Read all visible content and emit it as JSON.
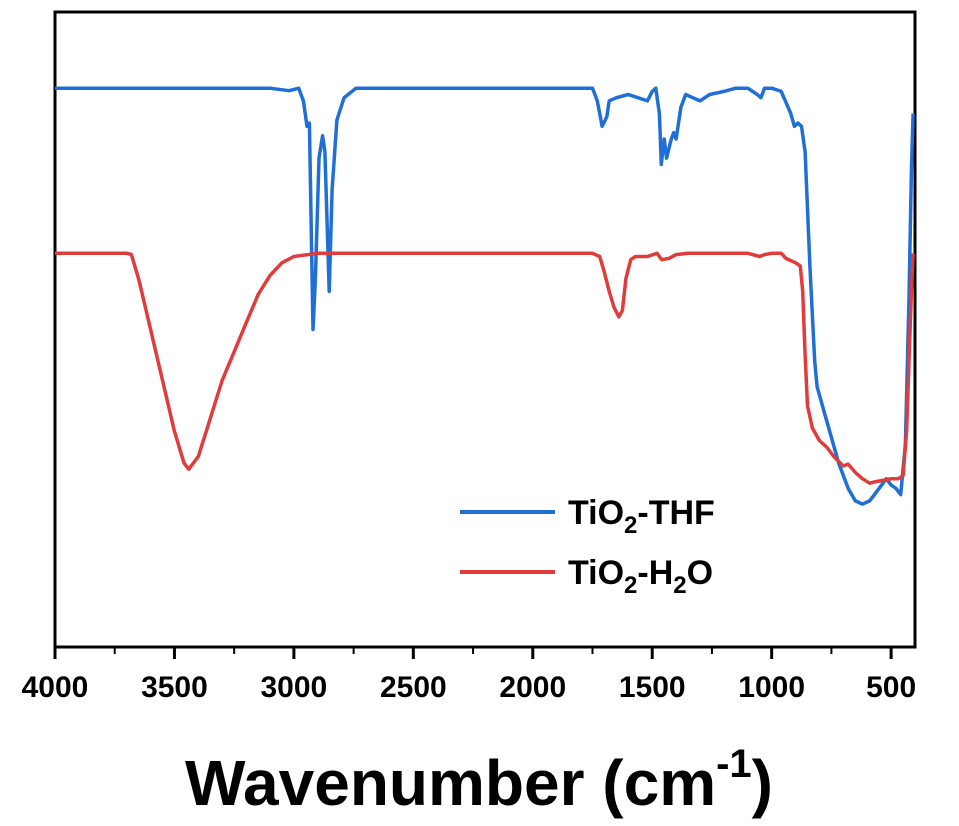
{
  "chart_data": {
    "type": "line",
    "title": "",
    "xlabel": "Wavenumber (cm-1)",
    "xlabel_parts": {
      "base": "Wavenumber (cm",
      "sup": "-1",
      "close": ")"
    },
    "ylabel": "",
    "xlim": [
      4000,
      400
    ],
    "x_reversed": true,
    "y_ticks_visible": false,
    "ylim": [
      0,
      100
    ],
    "xticks": [
      "4000",
      "3500",
      "3000",
      "2500",
      "2000",
      "1500",
      "1000",
      "500"
    ],
    "xtick_values": [
      4000,
      3500,
      3000,
      2500,
      2000,
      1500,
      1000,
      500
    ],
    "grid": false,
    "legend": "bottom-right",
    "series": [
      {
        "name": "TiO2-THF",
        "label_parts": {
          "a": "TiO",
          "sub": "2",
          "b": "-THF"
        },
        "color": "#1f6fd6",
        "points": [
          [
            4000,
            88.0
          ],
          [
            3500,
            88.0
          ],
          [
            3100,
            88.0
          ],
          [
            3020,
            87.6
          ],
          [
            2980,
            88.0
          ],
          [
            2960,
            86.0
          ],
          [
            2945,
            82.0
          ],
          [
            2935,
            82.5
          ],
          [
            2920,
            50.0
          ],
          [
            2910,
            58.0
          ],
          [
            2895,
            77.0
          ],
          [
            2880,
            80.5
          ],
          [
            2870,
            78.0
          ],
          [
            2852,
            56.0
          ],
          [
            2840,
            72.0
          ],
          [
            2820,
            83.0
          ],
          [
            2790,
            86.5
          ],
          [
            2740,
            88.0
          ],
          [
            2500,
            88.0
          ],
          [
            2000,
            88.0
          ],
          [
            1750,
            88.0
          ],
          [
            1730,
            86.0
          ],
          [
            1720,
            84.0
          ],
          [
            1710,
            82.0
          ],
          [
            1690,
            83.5
          ],
          [
            1680,
            86.0
          ],
          [
            1650,
            86.5
          ],
          [
            1600,
            87.0
          ],
          [
            1560,
            86.5
          ],
          [
            1520,
            86.0
          ],
          [
            1500,
            87.5
          ],
          [
            1485,
            88.0
          ],
          [
            1470,
            84.0
          ],
          [
            1462,
            76.0
          ],
          [
            1450,
            80.0
          ],
          [
            1440,
            77.0
          ],
          [
            1430,
            78.5
          ],
          [
            1420,
            80.0
          ],
          [
            1410,
            81.0
          ],
          [
            1400,
            80.0
          ],
          [
            1380,
            85.0
          ],
          [
            1360,
            87.0
          ],
          [
            1330,
            86.5
          ],
          [
            1300,
            86.0
          ],
          [
            1260,
            87.0
          ],
          [
            1200,
            87.5
          ],
          [
            1150,
            88.0
          ],
          [
            1100,
            88.0
          ],
          [
            1060,
            87.0
          ],
          [
            1045,
            86.5
          ],
          [
            1030,
            88.0
          ],
          [
            1000,
            88.0
          ],
          [
            960,
            87.5
          ],
          [
            920,
            84.0
          ],
          [
            905,
            82.0
          ],
          [
            890,
            82.5
          ],
          [
            875,
            82.0
          ],
          [
            860,
            78.0
          ],
          [
            840,
            60.0
          ],
          [
            820,
            45.0
          ],
          [
            810,
            41.0
          ],
          [
            780,
            37.0
          ],
          [
            750,
            33.0
          ],
          [
            720,
            29.0
          ],
          [
            680,
            25.0
          ],
          [
            650,
            23.0
          ],
          [
            620,
            22.5
          ],
          [
            590,
            23.0
          ],
          [
            560,
            24.5
          ],
          [
            540,
            25.5
          ],
          [
            520,
            26.5
          ],
          [
            500,
            25.5
          ],
          [
            480,
            25.0
          ],
          [
            460,
            24.0
          ],
          [
            440,
            32.0
          ],
          [
            425,
            55.0
          ],
          [
            415,
            75.0
          ],
          [
            408,
            84.0
          ]
        ]
      },
      {
        "name": "TiO2-H2O",
        "label_parts": {
          "a": "TiO",
          "sub": "2",
          "b": "-H",
          "sub2": "2",
          "c": "O"
        },
        "color": "#e03c3c",
        "points": [
          [
            4000,
            62.0
          ],
          [
            3700,
            62.0
          ],
          [
            3680,
            61.8
          ],
          [
            3650,
            58.0
          ],
          [
            3600,
            50.0
          ],
          [
            3550,
            42.0
          ],
          [
            3500,
            34.0
          ],
          [
            3460,
            29.0
          ],
          [
            3440,
            28.0
          ],
          [
            3400,
            30.0
          ],
          [
            3350,
            36.0
          ],
          [
            3300,
            42.0
          ],
          [
            3250,
            46.5
          ],
          [
            3200,
            51.0
          ],
          [
            3150,
            55.5
          ],
          [
            3100,
            58.5
          ],
          [
            3050,
            60.5
          ],
          [
            3000,
            61.5
          ],
          [
            2900,
            62.0
          ],
          [
            2500,
            62.0
          ],
          [
            2000,
            62.0
          ],
          [
            1800,
            62.0
          ],
          [
            1750,
            62.0
          ],
          [
            1720,
            61.5
          ],
          [
            1700,
            59.0
          ],
          [
            1680,
            56.0
          ],
          [
            1660,
            53.5
          ],
          [
            1640,
            52.0
          ],
          [
            1625,
            53.0
          ],
          [
            1610,
            58.0
          ],
          [
            1590,
            61.0
          ],
          [
            1570,
            61.5
          ],
          [
            1520,
            61.5
          ],
          [
            1480,
            62.0
          ],
          [
            1460,
            61.0
          ],
          [
            1430,
            61.2
          ],
          [
            1400,
            61.8
          ],
          [
            1350,
            62.0
          ],
          [
            1200,
            62.0
          ],
          [
            1100,
            62.0
          ],
          [
            1050,
            61.5
          ],
          [
            1030,
            61.8
          ],
          [
            1000,
            62.0
          ],
          [
            960,
            62.0
          ],
          [
            940,
            61.2
          ],
          [
            900,
            60.5
          ],
          [
            880,
            60.0
          ],
          [
            870,
            56.0
          ],
          [
            860,
            46.0
          ],
          [
            850,
            38.0
          ],
          [
            830,
            34.5
          ],
          [
            800,
            32.5
          ],
          [
            770,
            31.5
          ],
          [
            740,
            30.0
          ],
          [
            700,
            28.5
          ],
          [
            680,
            28.8
          ],
          [
            650,
            27.5
          ],
          [
            620,
            26.5
          ],
          [
            590,
            25.8
          ],
          [
            570,
            26.0
          ],
          [
            540,
            26.2
          ],
          [
            500,
            26.5
          ],
          [
            470,
            26.5
          ],
          [
            450,
            27.0
          ],
          [
            435,
            34.0
          ],
          [
            425,
            45.0
          ],
          [
            415,
            56.0
          ],
          [
            408,
            62.0
          ]
        ]
      }
    ]
  }
}
